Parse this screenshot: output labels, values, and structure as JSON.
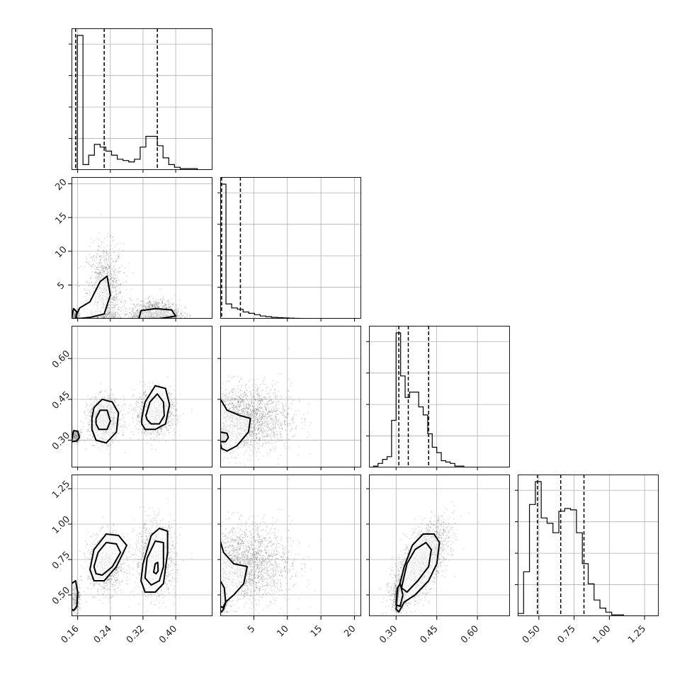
{
  "chart_data": {
    "type": "corner",
    "style": {
      "histogram_color": "#000000",
      "quantile_line_color": "#000000",
      "grid": true,
      "scatter_color": "#000000",
      "contour_color": "#000000"
    },
    "parameters": [
      {
        "xlim": [
          0.145,
          0.49
        ],
        "ticks": [
          0.16,
          0.24,
          0.32,
          0.4
        ],
        "tick_labels": [
          "0.16",
          "0.24",
          "0.32",
          "0.40"
        ],
        "quantiles": [
          0.155,
          0.225,
          0.355
        ],
        "hist_bin_edges": [
          0.145,
          0.159,
          0.173,
          0.187,
          0.201,
          0.215,
          0.229,
          0.243,
          0.257,
          0.271,
          0.285,
          0.299,
          0.313,
          0.327,
          0.341,
          0.355,
          0.369,
          0.383,
          0.397,
          0.411,
          0.425,
          0.439,
          0.453,
          0.467,
          0.481
        ],
        "hist_counts": [
          0.0,
          1.0,
          0.04,
          0.11,
          0.19,
          0.17,
          0.14,
          0.11,
          0.08,
          0.07,
          0.06,
          0.08,
          0.17,
          0.25,
          0.25,
          0.18,
          0.09,
          0.04,
          0.02,
          0.01,
          0.01,
          0.01,
          0.0,
          0.0
        ]
      },
      {
        "xlim": [
          0.0,
          21.0
        ],
        "ticks": [
          5,
          10,
          15,
          20
        ],
        "tick_labels": [
          "5",
          "10",
          "15",
          "20"
        ],
        "quantiles": [
          0.2,
          3.0
        ],
        "hist_bin_edges": [
          0.0,
          0.85,
          1.7,
          2.55,
          3.4,
          4.25,
          5.1,
          5.95,
          6.8,
          7.65,
          8.5,
          9.35,
          10.2,
          11.05,
          11.9,
          12.75,
          13.6,
          14.45,
          15.3,
          16.15,
          17.0,
          17.85,
          18.7,
          19.55,
          20.4
        ],
        "hist_counts": [
          1.0,
          0.11,
          0.08,
          0.07,
          0.05,
          0.04,
          0.03,
          0.02,
          0.015,
          0.01,
          0.008,
          0.006,
          0.004,
          0.003,
          0.002,
          0.0,
          0.0,
          0.0,
          0.0,
          0.0,
          0.0,
          0.0,
          0.0,
          0.0
        ]
      },
      {
        "xlim": [
          0.2,
          0.72
        ],
        "ticks": [
          0.3,
          0.45,
          0.6
        ],
        "tick_labels": [
          "0.30",
          "0.45",
          "0.60"
        ],
        "quantiles": [
          0.31,
          0.345,
          0.42
        ],
        "hist_bin_edges": [
          0.2,
          0.2167,
          0.2333,
          0.25,
          0.2667,
          0.2833,
          0.3,
          0.3167,
          0.3333,
          0.35,
          0.3667,
          0.3833,
          0.4,
          0.4167,
          0.4333,
          0.45,
          0.4667,
          0.4833,
          0.5,
          0.5167,
          0.5333,
          0.55,
          0.5667,
          0.5833,
          0.6
        ],
        "hist_counts": [
          0.0,
          0.01,
          0.03,
          0.06,
          0.08,
          0.35,
          1.0,
          0.68,
          0.52,
          0.56,
          0.56,
          0.45,
          0.39,
          0.25,
          0.15,
          0.11,
          0.05,
          0.04,
          0.03,
          0.01,
          0.01,
          0.0,
          0.0,
          0.0
        ]
      },
      {
        "xlim": [
          0.35,
          1.35
        ],
        "ticks": [
          0.5,
          0.75,
          1.0,
          1.25
        ],
        "tick_labels": [
          "0.50",
          "0.75",
          "1.00",
          "1.25"
        ],
        "quantiles": [
          0.49,
          0.655,
          0.82
        ],
        "hist_bin_edges": [
          0.35,
          0.3917,
          0.4333,
          0.475,
          0.5167,
          0.5583,
          0.6,
          0.6417,
          0.6833,
          0.725,
          0.7667,
          0.8083,
          0.85,
          0.8917,
          0.9333,
          0.975,
          1.0167,
          1.0583,
          1.1,
          1.1417,
          1.1833,
          1.225,
          1.2667,
          1.3083,
          1.35
        ],
        "hist_counts": [
          0.02,
          0.33,
          0.83,
          1.0,
          0.73,
          0.69,
          0.62,
          0.78,
          0.8,
          0.79,
          0.62,
          0.39,
          0.24,
          0.12,
          0.06,
          0.03,
          0.01,
          0.01,
          0.0,
          0.0,
          0.0,
          0.0,
          0.0,
          0.0
        ]
      }
    ],
    "row_axes": [
      null,
      {
        "ylim": [
          0.0,
          21.0
        ],
        "ticks": [
          5,
          10,
          15,
          20
        ],
        "tick_labels": [
          "5",
          "10",
          "15",
          "20"
        ]
      },
      {
        "ylim": [
          0.2,
          0.72
        ],
        "ticks": [
          0.3,
          0.45,
          0.6
        ],
        "tick_labels": [
          "0.30",
          "0.45",
          "0.60"
        ]
      },
      {
        "ylim": [
          0.35,
          1.35
        ],
        "ticks": [
          0.5,
          0.75,
          1.0,
          1.25
        ],
        "tick_labels": [
          "0.50",
          "0.75",
          "1.00",
          "1.25"
        ]
      }
    ],
    "scatter_components": [
      {
        "row": 1,
        "col": 0,
        "x": 0.227,
        "y": 4.0,
        "sx": 0.022,
        "sy": 3.5,
        "w": 0.42
      },
      {
        "row": 1,
        "col": 0,
        "x": 0.155,
        "y": 0.3,
        "sx": 0.005,
        "sy": 0.4,
        "w": 0.15
      },
      {
        "row": 1,
        "col": 0,
        "x": 0.35,
        "y": 0.8,
        "sx": 0.03,
        "sy": 1.0,
        "w": 0.43
      },
      {
        "row": 2,
        "col": 0,
        "x": 0.225,
        "y": 0.375,
        "sx": 0.02,
        "sy": 0.04,
        "w": 0.42
      },
      {
        "row": 2,
        "col": 0,
        "x": 0.155,
        "y": 0.315,
        "sx": 0.005,
        "sy": 0.01,
        "w": 0.15
      },
      {
        "row": 2,
        "col": 0,
        "x": 0.35,
        "y": 0.4,
        "sx": 0.025,
        "sy": 0.04,
        "w": 0.43
      },
      {
        "row": 3,
        "col": 0,
        "x": 0.23,
        "y": 0.72,
        "sx": 0.022,
        "sy": 0.1,
        "w": 0.42
      },
      {
        "row": 3,
        "col": 0,
        "x": 0.155,
        "y": 0.48,
        "sx": 0.005,
        "sy": 0.05,
        "w": 0.15
      },
      {
        "row": 3,
        "col": 0,
        "x": 0.35,
        "y": 0.75,
        "sx": 0.025,
        "sy": 0.13,
        "w": 0.43
      },
      {
        "row": 2,
        "col": 1,
        "x": 3.5,
        "y": 0.38,
        "sx": 3.5,
        "sy": 0.06,
        "w": 0.85
      },
      {
        "row": 2,
        "col": 1,
        "x": 0.3,
        "y": 0.31,
        "sx": 0.4,
        "sy": 0.015,
        "w": 0.15
      },
      {
        "row": 3,
        "col": 1,
        "x": 3.5,
        "y": 0.72,
        "sx": 3.5,
        "sy": 0.14,
        "w": 0.85
      },
      {
        "row": 3,
        "col": 1,
        "x": 0.3,
        "y": 0.48,
        "sx": 0.4,
        "sy": 0.06,
        "w": 0.15
      },
      {
        "row": 3,
        "col": 2,
        "x": 0.39,
        "y": 0.72,
        "sx": 0.05,
        "sy": 0.14,
        "w": 0.85,
        "rho": 0.65
      },
      {
        "row": 3,
        "col": 2,
        "x": 0.31,
        "y": 0.48,
        "sx": 0.012,
        "sy": 0.05,
        "w": 0.15
      }
    ],
    "contour_levels": [
      {
        "row": 1,
        "col": 0,
        "points": [
          [
            0.155,
            0.3
          ],
          [
            0.165,
            1.6
          ],
          [
            0.19,
            2.5
          ],
          [
            0.215,
            5.5
          ],
          [
            0.232,
            6.3
          ],
          [
            0.24,
            3.5
          ],
          [
            0.225,
            0.7
          ],
          [
            0.19,
            0.2
          ],
          [
            0.16,
            0.0
          ]
        ]
      },
      {
        "row": 1,
        "col": 0,
        "points": [
          [
            0.31,
            0.0
          ],
          [
            0.315,
            1.2
          ],
          [
            0.35,
            1.5
          ],
          [
            0.39,
            1.3
          ],
          [
            0.4,
            0.4
          ],
          [
            0.36,
            0.0
          ]
        ]
      },
      {
        "row": 1,
        "col": 0,
        "points": [
          [
            0.145,
            0.0
          ],
          [
            0.15,
            1.5
          ],
          [
            0.158,
            1.0
          ],
          [
            0.155,
            0.0
          ]
        ]
      },
      {
        "row": 2,
        "col": 0,
        "points": [
          [
            0.195,
            0.38
          ],
          [
            0.2,
            0.42
          ],
          [
            0.22,
            0.45
          ],
          [
            0.245,
            0.44
          ],
          [
            0.26,
            0.4
          ],
          [
            0.255,
            0.33
          ],
          [
            0.23,
            0.29
          ],
          [
            0.205,
            0.3
          ],
          [
            0.195,
            0.34
          ]
        ]
      },
      {
        "row": 2,
        "col": 0,
        "points": [
          [
            0.205,
            0.38
          ],
          [
            0.215,
            0.41
          ],
          [
            0.232,
            0.41
          ],
          [
            0.24,
            0.37
          ],
          [
            0.232,
            0.34
          ],
          [
            0.212,
            0.34
          ],
          [
            0.205,
            0.36
          ]
        ]
      },
      {
        "row": 2,
        "col": 0,
        "points": [
          [
            0.317,
            0.38
          ],
          [
            0.325,
            0.44
          ],
          [
            0.35,
            0.5
          ],
          [
            0.375,
            0.49
          ],
          [
            0.385,
            0.43
          ],
          [
            0.375,
            0.36
          ],
          [
            0.35,
            0.34
          ],
          [
            0.325,
            0.34
          ],
          [
            0.317,
            0.36
          ]
        ]
      },
      {
        "row": 2,
        "col": 0,
        "points": [
          [
            0.327,
            0.39
          ],
          [
            0.337,
            0.44
          ],
          [
            0.355,
            0.47
          ],
          [
            0.37,
            0.44
          ],
          [
            0.372,
            0.39
          ],
          [
            0.36,
            0.36
          ],
          [
            0.34,
            0.36
          ],
          [
            0.33,
            0.375
          ]
        ]
      },
      {
        "row": 2,
        "col": 0,
        "points": [
          [
            0.145,
            0.295
          ],
          [
            0.15,
            0.335
          ],
          [
            0.16,
            0.333
          ],
          [
            0.164,
            0.31
          ],
          [
            0.157,
            0.297
          ]
        ]
      },
      {
        "row": 2,
        "col": 1,
        "points": [
          [
            0.0,
            0.29
          ],
          [
            0.0,
            0.45
          ],
          [
            0.3,
            0.44
          ],
          [
            1.0,
            0.41
          ],
          [
            3.0,
            0.39
          ],
          [
            4.5,
            0.38
          ],
          [
            4.2,
            0.33
          ],
          [
            2.5,
            0.28
          ],
          [
            1.0,
            0.26
          ],
          [
            0.2,
            0.27
          ]
        ]
      },
      {
        "row": 2,
        "col": 1,
        "points": [
          [
            0.0,
            0.295
          ],
          [
            0.0,
            0.33
          ],
          [
            1.0,
            0.325
          ],
          [
            1.2,
            0.31
          ],
          [
            0.8,
            0.295
          ]
        ]
      },
      {
        "row": 3,
        "col": 0,
        "points": [
          [
            0.19,
            0.68
          ],
          [
            0.2,
            0.82
          ],
          [
            0.23,
            0.93
          ],
          [
            0.26,
            0.92
          ],
          [
            0.28,
            0.85
          ],
          [
            0.255,
            0.7
          ],
          [
            0.225,
            0.6
          ],
          [
            0.2,
            0.6
          ]
        ]
      },
      {
        "row": 3,
        "col": 0,
        "points": [
          [
            0.2,
            0.7
          ],
          [
            0.21,
            0.8
          ],
          [
            0.23,
            0.87
          ],
          [
            0.255,
            0.86
          ],
          [
            0.265,
            0.8
          ],
          [
            0.245,
            0.7
          ],
          [
            0.22,
            0.64
          ],
          [
            0.205,
            0.65
          ]
        ]
      },
      {
        "row": 3,
        "col": 0,
        "points": [
          [
            0.315,
            0.6
          ],
          [
            0.32,
            0.72
          ],
          [
            0.34,
            0.92
          ],
          [
            0.36,
            0.97
          ],
          [
            0.38,
            0.95
          ],
          [
            0.38,
            0.8
          ],
          [
            0.37,
            0.58
          ],
          [
            0.35,
            0.52
          ],
          [
            0.325,
            0.52
          ]
        ]
      },
      {
        "row": 3,
        "col": 0,
        "points": [
          [
            0.325,
            0.62
          ],
          [
            0.33,
            0.76
          ],
          [
            0.35,
            0.88
          ],
          [
            0.37,
            0.87
          ],
          [
            0.37,
            0.7
          ],
          [
            0.36,
            0.6
          ],
          [
            0.34,
            0.57
          ]
        ]
      },
      {
        "row": 3,
        "col": 0,
        "points": [
          [
            0.346,
            0.66
          ],
          [
            0.35,
            0.72
          ],
          [
            0.356,
            0.73
          ],
          [
            0.357,
            0.67
          ],
          [
            0.352,
            0.65
          ]
        ]
      },
      {
        "row": 3,
        "col": 0,
        "points": [
          [
            0.145,
            0.4
          ],
          [
            0.145,
            0.58
          ],
          [
            0.155,
            0.6
          ],
          [
            0.16,
            0.52
          ],
          [
            0.158,
            0.42
          ],
          [
            0.15,
            0.39
          ]
        ]
      },
      {
        "row": 3,
        "col": 1,
        "points": [
          [
            0.0,
            0.39
          ],
          [
            0.0,
            0.88
          ],
          [
            0.5,
            0.8
          ],
          [
            2.0,
            0.72
          ],
          [
            4.0,
            0.7
          ],
          [
            3.5,
            0.58
          ],
          [
            2.0,
            0.5
          ],
          [
            0.8,
            0.45
          ],
          [
            0.5,
            0.4
          ],
          [
            0.2,
            0.38
          ]
        ]
      },
      {
        "row": 3,
        "col": 1,
        "points": [
          [
            0.0,
            0.42
          ],
          [
            0.0,
            0.6
          ],
          [
            0.6,
            0.55
          ],
          [
            0.8,
            0.45
          ],
          [
            0.4,
            0.41
          ]
        ]
      },
      {
        "row": 3,
        "col": 2,
        "points": [
          [
            0.3,
            0.4
          ],
          [
            0.31,
            0.55
          ],
          [
            0.33,
            0.7
          ],
          [
            0.36,
            0.85
          ],
          [
            0.4,
            0.93
          ],
          [
            0.44,
            0.93
          ],
          [
            0.46,
            0.87
          ],
          [
            0.45,
            0.72
          ],
          [
            0.42,
            0.6
          ],
          [
            0.37,
            0.5
          ],
          [
            0.33,
            0.45
          ],
          [
            0.31,
            0.38
          ]
        ]
      },
      {
        "row": 3,
        "col": 2,
        "points": [
          [
            0.32,
            0.55
          ],
          [
            0.34,
            0.72
          ],
          [
            0.37,
            0.82
          ],
          [
            0.41,
            0.87
          ],
          [
            0.43,
            0.82
          ],
          [
            0.42,
            0.7
          ],
          [
            0.38,
            0.6
          ],
          [
            0.34,
            0.52
          ]
        ]
      },
      {
        "row": 3,
        "col": 2,
        "points": [
          [
            0.3,
            0.43
          ],
          [
            0.305,
            0.55
          ],
          [
            0.315,
            0.58
          ],
          [
            0.325,
            0.5
          ],
          [
            0.315,
            0.42
          ]
        ]
      }
    ]
  }
}
